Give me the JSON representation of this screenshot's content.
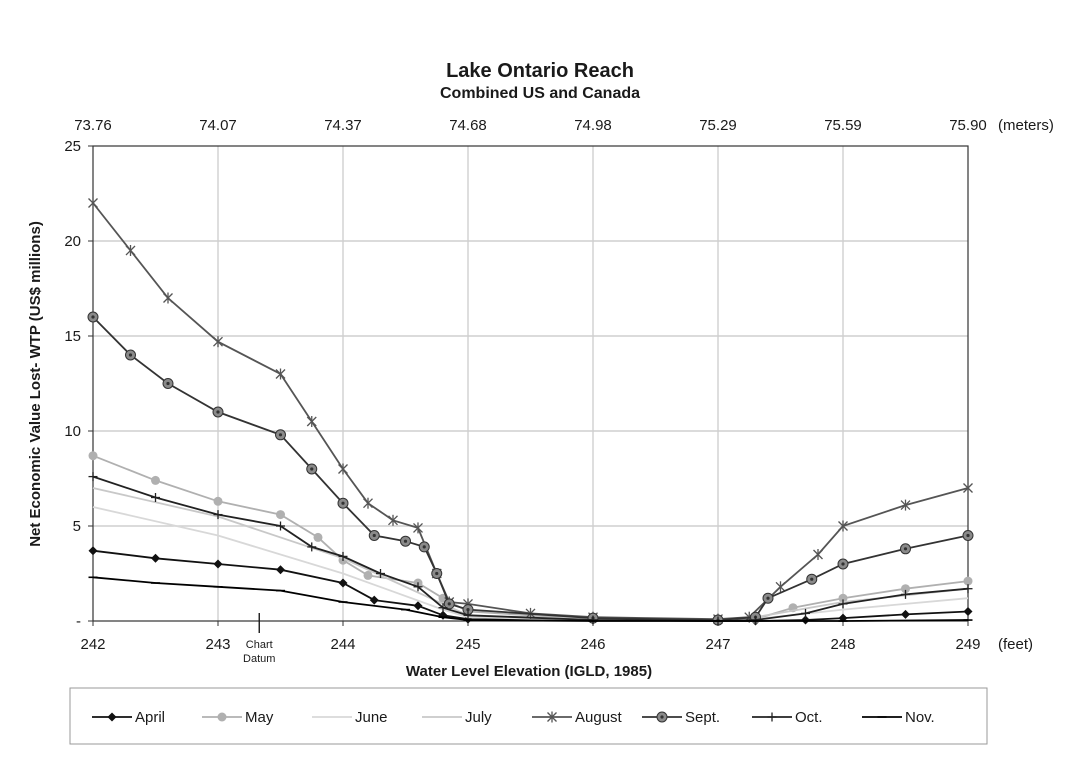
{
  "chart_data": {
    "type": "line",
    "title": "Lake Ontario Reach",
    "subtitle": "Combined US and Canada",
    "xlabel": "Water Level Elevation (IGLD, 1985)",
    "ylabel": "Net Economic Value Lost- WTP (US$ millions)",
    "x_unit": "(feet)",
    "x2_unit": "(meters)",
    "xlim": [
      242,
      249
    ],
    "ylim": [
      0,
      25
    ],
    "x_ticks": [
      "242",
      "243",
      "244",
      "245",
      "246",
      "247",
      "248",
      "249"
    ],
    "x2_ticks": [
      "73.76",
      "74.07",
      "74.37",
      "74.68",
      "74.98",
      "75.29",
      "75.59",
      "75.90"
    ],
    "y_ticks": [
      "-",
      "5",
      "10",
      "15",
      "20",
      "25"
    ],
    "annotation": "Chart Datum",
    "annotation_x": 243.33,
    "grid": true,
    "legend_position": "bottom",
    "series": [
      {
        "name": "April",
        "color": "#111111",
        "marker": "diamond",
        "points": [
          [
            242,
            3.7
          ],
          [
            242.5,
            3.3
          ],
          [
            243,
            3.0
          ],
          [
            243.5,
            2.7
          ],
          [
            244,
            2.0
          ],
          [
            244.25,
            1.1
          ],
          [
            244.6,
            0.8
          ],
          [
            244.8,
            0.3
          ],
          [
            245,
            0.1
          ],
          [
            246,
            0.05
          ],
          [
            247,
            0.0
          ],
          [
            247.3,
            0.0
          ],
          [
            247.7,
            0.05
          ],
          [
            248,
            0.15
          ],
          [
            248.5,
            0.35
          ],
          [
            249,
            0.5
          ]
        ]
      },
      {
        "name": "May",
        "color": "#b0b0b0",
        "marker": "circle",
        "points": [
          [
            242,
            8.7
          ],
          [
            242.5,
            7.4
          ],
          [
            243,
            6.3
          ],
          [
            243.5,
            5.6
          ],
          [
            243.8,
            4.4
          ],
          [
            244,
            3.2
          ],
          [
            244.2,
            2.4
          ],
          [
            244.6,
            2.0
          ],
          [
            244.8,
            1.2
          ],
          [
            245,
            0.5
          ],
          [
            246,
            0.1
          ],
          [
            247,
            0.05
          ],
          [
            247.3,
            0.1
          ],
          [
            247.6,
            0.7
          ],
          [
            248,
            1.2
          ],
          [
            248.5,
            1.7
          ],
          [
            249,
            2.1
          ]
        ]
      },
      {
        "name": "June",
        "color": "#d8d8d8",
        "marker": "none",
        "points": [
          [
            242,
            6.0
          ],
          [
            243,
            4.5
          ],
          [
            244,
            2.5
          ],
          [
            244.8,
            0.6
          ],
          [
            245,
            0.2
          ],
          [
            246,
            0.05
          ],
          [
            247,
            0.05
          ],
          [
            247.3,
            0.1
          ],
          [
            248,
            0.6
          ],
          [
            249,
            1.2
          ]
        ]
      },
      {
        "name": "July",
        "color": "#c8c8c8",
        "marker": "none",
        "points": [
          [
            242,
            7.0
          ],
          [
            243,
            5.5
          ],
          [
            244,
            3.3
          ],
          [
            244.8,
            0.9
          ],
          [
            245,
            0.3
          ],
          [
            246,
            0.1
          ],
          [
            247,
            0.05
          ],
          [
            247.3,
            0.2
          ],
          [
            248,
            1.0
          ],
          [
            249,
            1.7
          ]
        ]
      },
      {
        "name": "August",
        "color": "#555555",
        "marker": "star",
        "points": [
          [
            242,
            22.0
          ],
          [
            242.3,
            19.5
          ],
          [
            242.6,
            17.0
          ],
          [
            243,
            14.7
          ],
          [
            243.5,
            13.0
          ],
          [
            243.75,
            10.5
          ],
          [
            244,
            8.0
          ],
          [
            244.2,
            6.2
          ],
          [
            244.4,
            5.3
          ],
          [
            244.6,
            4.9
          ],
          [
            244.75,
            2.5
          ],
          [
            244.85,
            1.0
          ],
          [
            245,
            0.9
          ],
          [
            245.5,
            0.4
          ],
          [
            246,
            0.2
          ],
          [
            247,
            0.1
          ],
          [
            247.25,
            0.2
          ],
          [
            247.5,
            1.8
          ],
          [
            247.8,
            3.5
          ],
          [
            248,
            5.0
          ],
          [
            248.5,
            6.1
          ],
          [
            249,
            7.0
          ]
        ]
      },
      {
        "name": "Sept.",
        "color": "#333333",
        "marker": "circle-dot",
        "points": [
          [
            242,
            16.0
          ],
          [
            242.3,
            14.0
          ],
          [
            242.6,
            12.5
          ],
          [
            243,
            11.0
          ],
          [
            243.5,
            9.8
          ],
          [
            243.75,
            8.0
          ],
          [
            244,
            6.2
          ],
          [
            244.25,
            4.5
          ],
          [
            244.5,
            4.2
          ],
          [
            244.65,
            3.9
          ],
          [
            244.75,
            2.5
          ],
          [
            244.85,
            0.9
          ],
          [
            245,
            0.6
          ],
          [
            246,
            0.15
          ],
          [
            247,
            0.05
          ],
          [
            247.3,
            0.2
          ],
          [
            247.4,
            1.2
          ],
          [
            247.75,
            2.2
          ],
          [
            248,
            3.0
          ],
          [
            248.5,
            3.8
          ],
          [
            249,
            4.5
          ]
        ]
      },
      {
        "name": "Oct.",
        "color": "#222222",
        "marker": "plus",
        "points": [
          [
            242,
            7.6
          ],
          [
            242.5,
            6.5
          ],
          [
            243,
            5.6
          ],
          [
            243.5,
            5.0
          ],
          [
            243.75,
            3.9
          ],
          [
            244,
            3.4
          ],
          [
            244.3,
            2.5
          ],
          [
            244.6,
            1.8
          ],
          [
            244.8,
            0.7
          ],
          [
            245,
            0.3
          ],
          [
            246,
            0.05
          ],
          [
            247,
            0.0
          ],
          [
            247.3,
            0.05
          ],
          [
            247.7,
            0.4
          ],
          [
            248,
            0.9
          ],
          [
            248.5,
            1.4
          ],
          [
            249,
            1.7
          ]
        ]
      },
      {
        "name": "Nov.",
        "color": "#000000",
        "marker": "dash",
        "points": [
          [
            242,
            2.3
          ],
          [
            242.5,
            2.0
          ],
          [
            243,
            1.8
          ],
          [
            243.5,
            1.6
          ],
          [
            244,
            1.0
          ],
          [
            244.5,
            0.6
          ],
          [
            244.8,
            0.2
          ],
          [
            245,
            0.05
          ],
          [
            246,
            0.0
          ],
          [
            247,
            0.0
          ],
          [
            248,
            0.0
          ],
          [
            249,
            0.05
          ]
        ]
      }
    ]
  }
}
